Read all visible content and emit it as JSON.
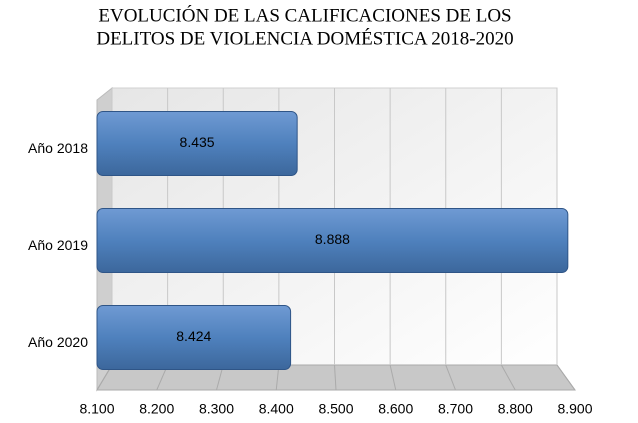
{
  "chart_data": {
    "type": "barh",
    "title": [
      "EVOLUCIÓN DE LAS CALIFICACIONES DE LOS",
      "DELITOS DE VIOLENCIA DOMÉSTICA  2018-2020"
    ],
    "categories": [
      "Año 2018",
      "Año 2019",
      "Año 2020"
    ],
    "values": [
      8435,
      8888,
      8424
    ],
    "value_labels": [
      "8.435",
      "8.888",
      "8.424"
    ],
    "color": "#4f81bd",
    "xlim": [
      8100,
      8900
    ],
    "xticks": [
      {
        "value": 8100,
        "label": "8.100"
      },
      {
        "value": 8200,
        "label": "8.200"
      },
      {
        "value": 8300,
        "label": "8.300"
      },
      {
        "value": 8400,
        "label": "8.400"
      },
      {
        "value": 8500,
        "label": "8.500"
      },
      {
        "value": 8600,
        "label": "8.600"
      },
      {
        "value": 8700,
        "label": "8.700"
      },
      {
        "value": 8800,
        "label": "8.800"
      },
      {
        "value": 8900,
        "label": "8.900"
      }
    ],
    "grid": true
  }
}
